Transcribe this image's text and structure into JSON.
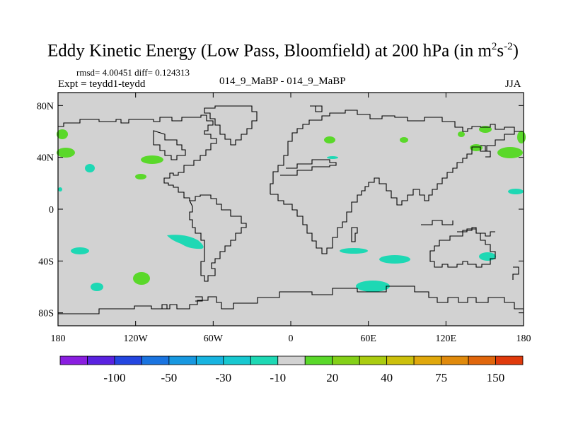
{
  "title": {
    "main": "Eddy Kinetic Energy (Low Pass, Bloomfield) at 200 hPa (in m",
    "sup1": "2",
    "mid": "s",
    "sup2": "-2",
    "close": ")"
  },
  "stats": "rmsd= 4.00451  diff= 0.124313",
  "expt": "Expt = teydd1-teydd",
  "center_label": "014_9_MaBP - 014_9_MaBP",
  "season": "JJA",
  "axes": {
    "lat_labels": [
      "80N",
      "40N",
      "0",
      "40S",
      "80S"
    ],
    "lon_labels": [
      "180",
      "120W",
      "60W",
      "0",
      "60E",
      "120E",
      "180"
    ],
    "lat_range": [
      -90,
      90
    ],
    "lon_range": [
      -180,
      180
    ]
  },
  "colorbar": {
    "colors": [
      "#8a1ee0",
      "#5a22e0",
      "#2446e0",
      "#1a74e0",
      "#1898e0",
      "#18b4e0",
      "#18c8d0",
      "#1ed8b4",
      "#d2d2d2",
      "#5ad82a",
      "#84d018",
      "#aacc10",
      "#ccc00c",
      "#e0a80c",
      "#e08a0c",
      "#e0660c",
      "#e03a0c"
    ],
    "labels": [
      "-100",
      "-50",
      "-30",
      "-10",
      "20",
      "40",
      "75",
      "150"
    ]
  },
  "ocean_color": "#d2d2d2",
  "positive_color": "#5ad82a",
  "negative_color": "#1ed8b4"
}
